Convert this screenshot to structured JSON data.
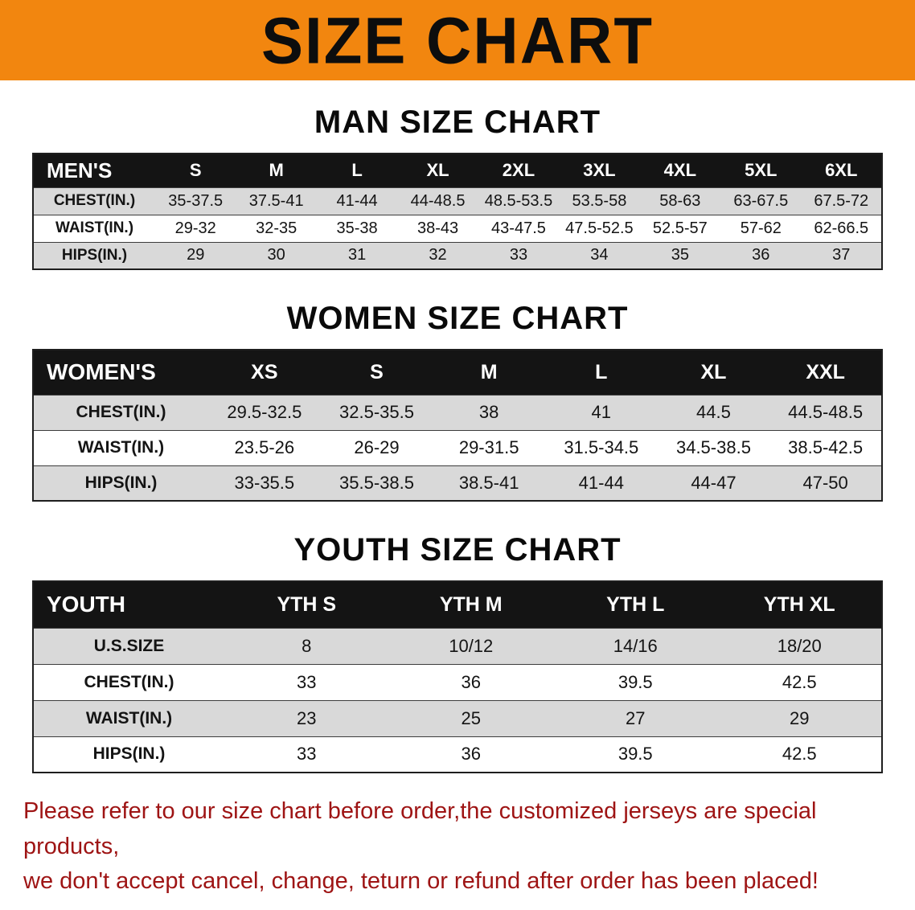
{
  "banner": {
    "title": "SIZE CHART",
    "bg_color": "#f2860f",
    "text_color": "#0d0d0d"
  },
  "colors": {
    "table_header_bg": "#141414",
    "table_header_text": "#ffffff",
    "row_stripe": "#d9d9d9",
    "disclaimer_text": "#9e1414"
  },
  "chart_data": [
    {
      "type": "table",
      "title": "MAN SIZE CHART",
      "columns": [
        "MEN'S",
        "S",
        "M",
        "L",
        "XL",
        "2XL",
        "3XL",
        "4XL",
        "5XL",
        "6XL"
      ],
      "rows": [
        [
          "CHEST(IN.)",
          "35-37.5",
          "37.5-41",
          "41-44",
          "44-48.5",
          "48.5-53.5",
          "53.5-58",
          "58-63",
          "63-67.5",
          "67.5-72"
        ],
        [
          "WAIST(IN.)",
          "29-32",
          "32-35",
          "35-38",
          "38-43",
          "43-47.5",
          "47.5-52.5",
          "52.5-57",
          "57-62",
          "62-66.5"
        ],
        [
          "HIPS(IN.)",
          "29",
          "30",
          "31",
          "32",
          "33",
          "34",
          "35",
          "36",
          "37"
        ]
      ]
    },
    {
      "type": "table",
      "title": "WOMEN SIZE CHART",
      "columns": [
        "WOMEN'S",
        "XS",
        "S",
        "M",
        "L",
        "XL",
        "XXL"
      ],
      "rows": [
        [
          "CHEST(IN.)",
          "29.5-32.5",
          "32.5-35.5",
          "38",
          "41",
          "44.5",
          "44.5-48.5"
        ],
        [
          "WAIST(IN.)",
          "23.5-26",
          "26-29",
          "29-31.5",
          "31.5-34.5",
          "34.5-38.5",
          "38.5-42.5"
        ],
        [
          "HIPS(IN.)",
          "33-35.5",
          "35.5-38.5",
          "38.5-41",
          "41-44",
          "44-47",
          "47-50"
        ]
      ]
    },
    {
      "type": "table",
      "title": "YOUTH SIZE CHART",
      "columns": [
        "YOUTH",
        "YTH S",
        "YTH M",
        "YTH L",
        "YTH XL"
      ],
      "rows": [
        [
          "U.S.SIZE",
          "8",
          "10/12",
          "14/16",
          "18/20"
        ],
        [
          "CHEST(IN.)",
          "33",
          "36",
          "39.5",
          "42.5"
        ],
        [
          "WAIST(IN.)",
          "23",
          "25",
          "27",
          "29"
        ],
        [
          "HIPS(IN.)",
          "33",
          "36",
          "39.5",
          "42.5"
        ]
      ]
    }
  ],
  "disclaimer": {
    "line1": "Please refer to our size chart before order,the customized jerseys are special products,",
    "line2": "we don't accept cancel, change, teturn or refund after order has been placed!"
  }
}
